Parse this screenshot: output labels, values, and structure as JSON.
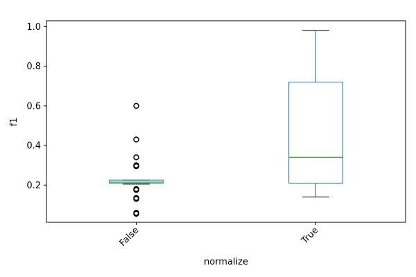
{
  "chart_data": {
    "type": "box",
    "title": "",
    "xlabel": "normalize",
    "ylabel": "f1",
    "ylim": [
      0.012,
      1.03
    ],
    "yticks": [
      0.2,
      0.4,
      0.6,
      0.8,
      1.0
    ],
    "ytick_labels": [
      "0.2",
      "0.4",
      "0.6",
      "0.8",
      "1.0"
    ],
    "categories": [
      "False",
      "True"
    ],
    "boxes": [
      {
        "category": "False",
        "whisker_low": 0.205,
        "q1": 0.21,
        "median": 0.215,
        "q3": 0.225,
        "whisker_high": 0.225,
        "outliers": [
          0.6,
          0.43,
          0.34,
          0.3,
          0.295,
          0.18,
          0.175,
          0.135,
          0.13,
          0.06,
          0.055
        ]
      },
      {
        "category": "True",
        "whisker_low": 0.14,
        "q1": 0.21,
        "median": 0.34,
        "q3": 0.72,
        "whisker_high": 0.98,
        "outliers": []
      }
    ],
    "grid": false,
    "colors": {
      "box": "#1f77b4",
      "median": "#2ca02c",
      "cap": "#000000",
      "outlier": "#000000",
      "axis": "#000000"
    }
  }
}
